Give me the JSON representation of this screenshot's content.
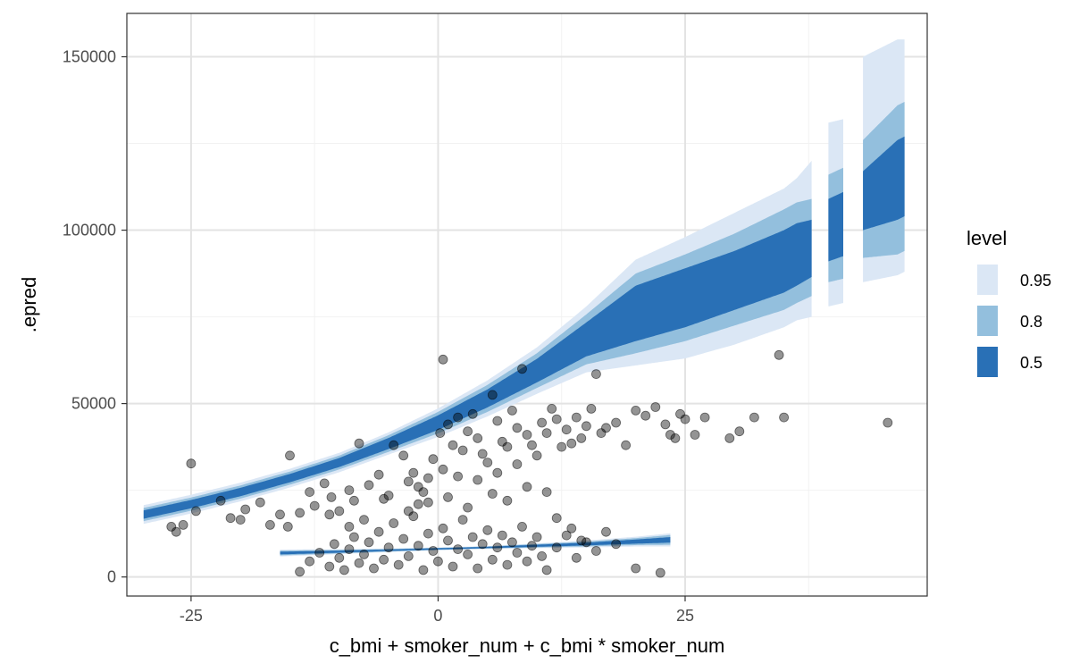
{
  "chart_data": {
    "type": "ribbon+scatter",
    "xlabel": "c_bmi + smoker_num + c_bmi * smoker_num",
    "ylabel": ".epred",
    "xlim": [
      -31.5,
      49.5
    ],
    "ylim": [
      -5500,
      162500
    ],
    "x_ticks": [
      -25,
      0,
      25
    ],
    "x_tick_labels": [
      "-25",
      "0",
      "25"
    ],
    "x_minor_ticks": [
      -12.5,
      12.5,
      37.5
    ],
    "y_ticks": [
      0,
      50000,
      100000,
      150000
    ],
    "y_tick_labels": [
      "0",
      "50000",
      "100000",
      "150000"
    ],
    "y_minor_ticks": [
      25000,
      75000,
      125000
    ],
    "grid": true,
    "legend": {
      "title": "level",
      "position": "right",
      "entries": [
        {
          "label": "0.95",
          "color": "#dbe7f5"
        },
        {
          "label": "0.8",
          "color": "#93bfdd"
        },
        {
          "label": "0.5",
          "color": "#2970b6"
        }
      ]
    },
    "colors": {
      "band95": "#dbe7f5",
      "band80": "#93bfdd",
      "band50": "#2970b6",
      "points": "#000000"
    },
    "ribbons": [
      {
        "name": "smoker",
        "x": [
          -29.8,
          -25,
          -20,
          -15,
          -10,
          -5,
          0,
          5,
          10,
          15,
          20,
          25,
          30,
          35,
          36.3,
          37.8,
          39.5,
          41,
          43,
          46.5,
          47.2
        ],
        "gaps": [
          [
            37.4,
            39.3
          ],
          [
            41.7,
            43.6
          ]
        ],
        "fit": [
          18000,
          21000,
          24500,
          28500,
          33000,
          38500,
          44500,
          51500,
          59500,
          68500,
          77000,
          80500,
          84500,
          91000,
          93000,
          97000,
          100000,
          103000,
          108000,
          114000,
          116000
        ],
        "lo50": [
          16800,
          19800,
          23300,
          27300,
          31700,
          36900,
          42400,
          48900,
          56100,
          63600,
          68000,
          72000,
          77000,
          82000,
          84000,
          86500,
          91000,
          92500,
          100000,
          103000,
          104000
        ],
        "hi50": [
          19200,
          22200,
          25700,
          29700,
          34300,
          40100,
          46600,
          54100,
          62900,
          73400,
          84000,
          89000,
          94000,
          100000,
          102000,
          103000,
          109000,
          111000,
          117000,
          126000,
          127000
        ],
        "lo80": [
          16100,
          19100,
          22600,
          26600,
          31000,
          36100,
          41400,
          47600,
          54500,
          61300,
          64500,
          68000,
          72500,
          77000,
          79000,
          81000,
          85000,
          86000,
          92000,
          93000,
          94000
        ],
        "hi80": [
          19900,
          22900,
          26400,
          30400,
          35000,
          40900,
          47600,
          55400,
          64500,
          75700,
          87500,
          93000,
          99000,
          106000,
          108000,
          109000,
          116000,
          118000,
          126000,
          136000,
          137000
        ],
        "lo95": [
          15300,
          18300,
          21800,
          25800,
          30200,
          35300,
          40400,
          46300,
          52800,
          59000,
          61000,
          63000,
          67000,
          72000,
          74000,
          75000,
          78000,
          79000,
          85000,
          87000,
          88000
        ],
        "hi95": [
          20700,
          23700,
          27200,
          31200,
          35800,
          41700,
          48600,
          56700,
          66200,
          78000,
          91500,
          98000,
          105000,
          112000,
          115000,
          120000,
          131000,
          132000,
          150000,
          155000,
          155000
        ]
      },
      {
        "name": "non-smoker",
        "x": [
          -16,
          -10,
          -5,
          0,
          5,
          10,
          15,
          20,
          23.5
        ],
        "gaps": [],
        "fit": [
          6900,
          7300,
          7700,
          8100,
          8500,
          9000,
          9500,
          10200,
          10700
        ],
        "lo50": [
          6500,
          7000,
          7500,
          7900,
          8300,
          8700,
          9100,
          9600,
          9900
        ],
        "hi50": [
          7300,
          7600,
          7900,
          8300,
          8700,
          9300,
          9900,
          10800,
          11500
        ],
        "lo80": [
          6200,
          6800,
          7300,
          7800,
          8200,
          8500,
          8800,
          9200,
          9300
        ],
        "hi80": [
          7600,
          7800,
          8100,
          8400,
          8800,
          9500,
          10200,
          11200,
          12100
        ],
        "lo95": [
          5900,
          6600,
          7200,
          7700,
          8100,
          8300,
          8500,
          8800,
          8800
        ],
        "hi95": [
          7900,
          8000,
          8200,
          8500,
          8900,
          9700,
          10500,
          11600,
          12600
        ]
      }
    ],
    "points": [
      [
        -25.0,
        32700
      ],
      [
        -25.8,
        15000
      ],
      [
        -26.5,
        13000
      ],
      [
        -27.0,
        14500
      ],
      [
        -24.5,
        19000
      ],
      [
        -22.0,
        22000
      ],
      [
        -21.0,
        17000
      ],
      [
        -20.0,
        16500
      ],
      [
        -19.5,
        19500
      ],
      [
        -18.0,
        21500
      ],
      [
        -17.0,
        15000
      ],
      [
        -16.0,
        18000
      ],
      [
        -15.0,
        35000
      ],
      [
        -15.2,
        14500
      ],
      [
        -14.0,
        18500
      ],
      [
        -13.0,
        24500
      ],
      [
        -12.5,
        20500
      ],
      [
        -11.5,
        27000
      ],
      [
        -10.8,
        23000
      ],
      [
        -10.0,
        19000
      ],
      [
        -9.0,
        25000
      ],
      [
        -8.0,
        38500
      ],
      [
        -8.5,
        22000
      ],
      [
        -7.0,
        26500
      ],
      [
        -6.0,
        29500
      ],
      [
        -5.0,
        23500
      ],
      [
        -4.5,
        38000
      ],
      [
        -3.5,
        35000
      ],
      [
        -3.0,
        27500
      ],
      [
        -2.5,
        30000
      ],
      [
        -2.0,
        21000
      ],
      [
        -1.5,
        24500
      ],
      [
        -1.0,
        28500
      ],
      [
        -0.5,
        34000
      ],
      [
        0.5,
        62700
      ],
      [
        0.2,
        41500
      ],
      [
        1.0,
        44000
      ],
      [
        1.5,
        38000
      ],
      [
        2.0,
        46000
      ],
      [
        2.5,
        36500
      ],
      [
        3.0,
        42000
      ],
      [
        3.5,
        47000
      ],
      [
        4.0,
        40000
      ],
      [
        4.5,
        35500
      ],
      [
        5.0,
        33000
      ],
      [
        5.5,
        52500
      ],
      [
        6.0,
        45000
      ],
      [
        6.5,
        39000
      ],
      [
        7.0,
        37500
      ],
      [
        7.5,
        48000
      ],
      [
        8.0,
        43000
      ],
      [
        8.5,
        60000
      ],
      [
        9.0,
        41000
      ],
      [
        9.5,
        38000
      ],
      [
        10.0,
        35000
      ],
      [
        10.5,
        44500
      ],
      [
        11.0,
        41500
      ],
      [
        11.5,
        48500
      ],
      [
        12.0,
        45500
      ],
      [
        12.5,
        37500
      ],
      [
        13.0,
        42500
      ],
      [
        13.5,
        38500
      ],
      [
        14.0,
        46000
      ],
      [
        14.5,
        40000
      ],
      [
        15.0,
        43500
      ],
      [
        15.5,
        48500
      ],
      [
        16.0,
        58500
      ],
      [
        16.5,
        41500
      ],
      [
        17.0,
        43000
      ],
      [
        18.0,
        44500
      ],
      [
        19.0,
        38000
      ],
      [
        20.0,
        48000
      ],
      [
        21.0,
        46500
      ],
      [
        22.0,
        49000
      ],
      [
        23.0,
        44000
      ],
      [
        23.5,
        41000
      ],
      [
        24.0,
        40000
      ],
      [
        24.5,
        47000
      ],
      [
        25.0,
        45500
      ],
      [
        26.0,
        41000
      ],
      [
        27.0,
        46000
      ],
      [
        29.5,
        40000
      ],
      [
        30.5,
        42000
      ],
      [
        32.0,
        46000
      ],
      [
        34.5,
        64000
      ],
      [
        35.0,
        46000
      ],
      [
        45.5,
        44500
      ],
      [
        -14.0,
        1500
      ],
      [
        -13.0,
        4500
      ],
      [
        -12.0,
        7000
      ],
      [
        -11.0,
        3000
      ],
      [
        -10.5,
        9500
      ],
      [
        -10.0,
        5500
      ],
      [
        -9.5,
        2000
      ],
      [
        -9.0,
        8000
      ],
      [
        -8.5,
        11500
      ],
      [
        -8.0,
        4000
      ],
      [
        -7.5,
        6500
      ],
      [
        -7.0,
        10000
      ],
      [
        -6.5,
        2500
      ],
      [
        -6.0,
        13000
      ],
      [
        -5.5,
        5000
      ],
      [
        -5.0,
        8500
      ],
      [
        -4.5,
        15500
      ],
      [
        -4.0,
        3500
      ],
      [
        -3.5,
        11000
      ],
      [
        -3.0,
        6000
      ],
      [
        -2.5,
        17500
      ],
      [
        -2.0,
        9000
      ],
      [
        -1.5,
        2000
      ],
      [
        -1.0,
        12500
      ],
      [
        -0.5,
        7500
      ],
      [
        0.0,
        4500
      ],
      [
        0.5,
        14000
      ],
      [
        1.0,
        10500
      ],
      [
        1.5,
        3000
      ],
      [
        2.0,
        8000
      ],
      [
        2.5,
        16500
      ],
      [
        3.0,
        6500
      ],
      [
        3.5,
        11500
      ],
      [
        4.0,
        2500
      ],
      [
        4.5,
        9500
      ],
      [
        5.0,
        13500
      ],
      [
        5.5,
        5000
      ],
      [
        6.0,
        8500
      ],
      [
        6.5,
        12000
      ],
      [
        7.0,
        3500
      ],
      [
        7.5,
        10000
      ],
      [
        8.0,
        7000
      ],
      [
        8.5,
        14500
      ],
      [
        9.0,
        4500
      ],
      [
        9.5,
        9000
      ],
      [
        10.0,
        11500
      ],
      [
        10.5,
        6000
      ],
      [
        11.0,
        2000
      ],
      [
        12.0,
        8500
      ],
      [
        13.0,
        12000
      ],
      [
        14.0,
        5500
      ],
      [
        15.0,
        10000
      ],
      [
        16.0,
        7500
      ],
      [
        17.0,
        13000
      ],
      [
        18.0,
        9500
      ],
      [
        20.0,
        2500
      ],
      [
        22.5,
        1200
      ],
      [
        -3.0,
        19000
      ],
      [
        -1.0,
        21500
      ],
      [
        1.0,
        23000
      ],
      [
        3.0,
        20000
      ],
      [
        5.5,
        24000
      ],
      [
        7.0,
        22000
      ],
      [
        9.0,
        26000
      ],
      [
        11.0,
        24500
      ],
      [
        12.0,
        17000
      ],
      [
        -7.5,
        16500
      ],
      [
        -5.5,
        22500
      ],
      [
        4.0,
        28000
      ],
      [
        6.0,
        30000
      ],
      [
        8.0,
        32500
      ],
      [
        -2.0,
        26000
      ],
      [
        0.5,
        31000
      ],
      [
        2.0,
        29000
      ],
      [
        -9.0,
        14500
      ],
      [
        -11.0,
        18000
      ],
      [
        13.5,
        14000
      ],
      [
        14.5,
        10500
      ]
    ]
  }
}
